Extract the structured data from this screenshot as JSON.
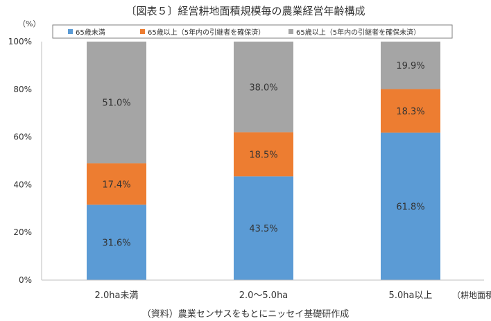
{
  "chart_data": {
    "type": "bar",
    "stacked": true,
    "title": "〔図表５〕経営耕地面積規模毎の農業経営年齢構成",
    "y_unit_label": "（%）",
    "xlabel": "（耕地面積",
    "source_note": "（資料）農業センサスをもとにニッセイ基礎研作成",
    "categories": [
      "2.0ha未満",
      "2.0～5.0ha",
      "5.0ha以上"
    ],
    "series": [
      {
        "name": "65歳未満",
        "color": "#5b9bd5",
        "values": [
          31.6,
          43.5,
          61.8
        ],
        "labels": [
          "31.6%",
          "43.5%",
          "61.8%"
        ]
      },
      {
        "name": "65歳以上（5年内の引継者を確保済）",
        "color": "#ed7d31",
        "values": [
          17.4,
          18.5,
          18.3
        ],
        "labels": [
          "17.4%",
          "18.5%",
          "18.3%"
        ]
      },
      {
        "name": "65歳以上（5年内の引継者を確保未済）",
        "color": "#a5a5a5",
        "values": [
          51.0,
          38.0,
          19.9
        ],
        "labels": [
          "51.0%",
          "38.0%",
          "19.9%"
        ]
      }
    ],
    "ylim": [
      0,
      100
    ],
    "yticks": [
      0,
      20,
      40,
      60,
      80,
      100
    ],
    "ytick_labels": [
      "0%",
      "20%",
      "40%",
      "60%",
      "80%",
      "100%"
    ],
    "grid": false,
    "legend_position": "top"
  }
}
